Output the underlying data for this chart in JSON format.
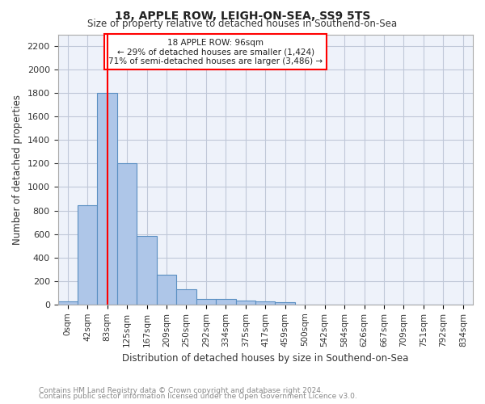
{
  "title": "18, APPLE ROW, LEIGH-ON-SEA, SS9 5TS",
  "subtitle": "Size of property relative to detached houses in Southend-on-Sea",
  "xlabel": "Distribution of detached houses by size in Southend-on-Sea",
  "ylabel": "Number of detached properties",
  "footnote1": "Contains HM Land Registry data © Crown copyright and database right 2024.",
  "footnote2": "Contains public sector information licensed under the Open Government Licence v3.0.",
  "annotation_title": "18 APPLE ROW: 96sqm",
  "annotation_line2": "← 29% of detached houses are smaller (1,424)",
  "annotation_line3": "71% of semi-detached houses are larger (3,486) →",
  "bar_labels": [
    "0sqm",
    "42sqm",
    "83sqm",
    "125sqm",
    "167sqm",
    "209sqm",
    "250sqm",
    "292sqm",
    "334sqm",
    "375sqm",
    "417sqm",
    "459sqm",
    "500sqm",
    "542sqm",
    "584sqm",
    "626sqm",
    "667sqm",
    "709sqm",
    "751sqm",
    "792sqm",
    "834sqm"
  ],
  "bar_values": [
    25,
    845,
    1800,
    1200,
    585,
    255,
    130,
    45,
    45,
    30,
    25,
    18,
    0,
    0,
    0,
    0,
    0,
    0,
    0,
    0,
    0
  ],
  "bar_color": "#aec6e8",
  "bar_edge_color": "#5a8fc2",
  "background_color": "#eef2fa",
  "grid_color": "#c0c8d8",
  "red_line_x": 2,
  "ylim": [
    0,
    2300
  ],
  "yticks": [
    0,
    200,
    400,
    600,
    800,
    1000,
    1200,
    1400,
    1600,
    1800,
    2000,
    2200
  ]
}
